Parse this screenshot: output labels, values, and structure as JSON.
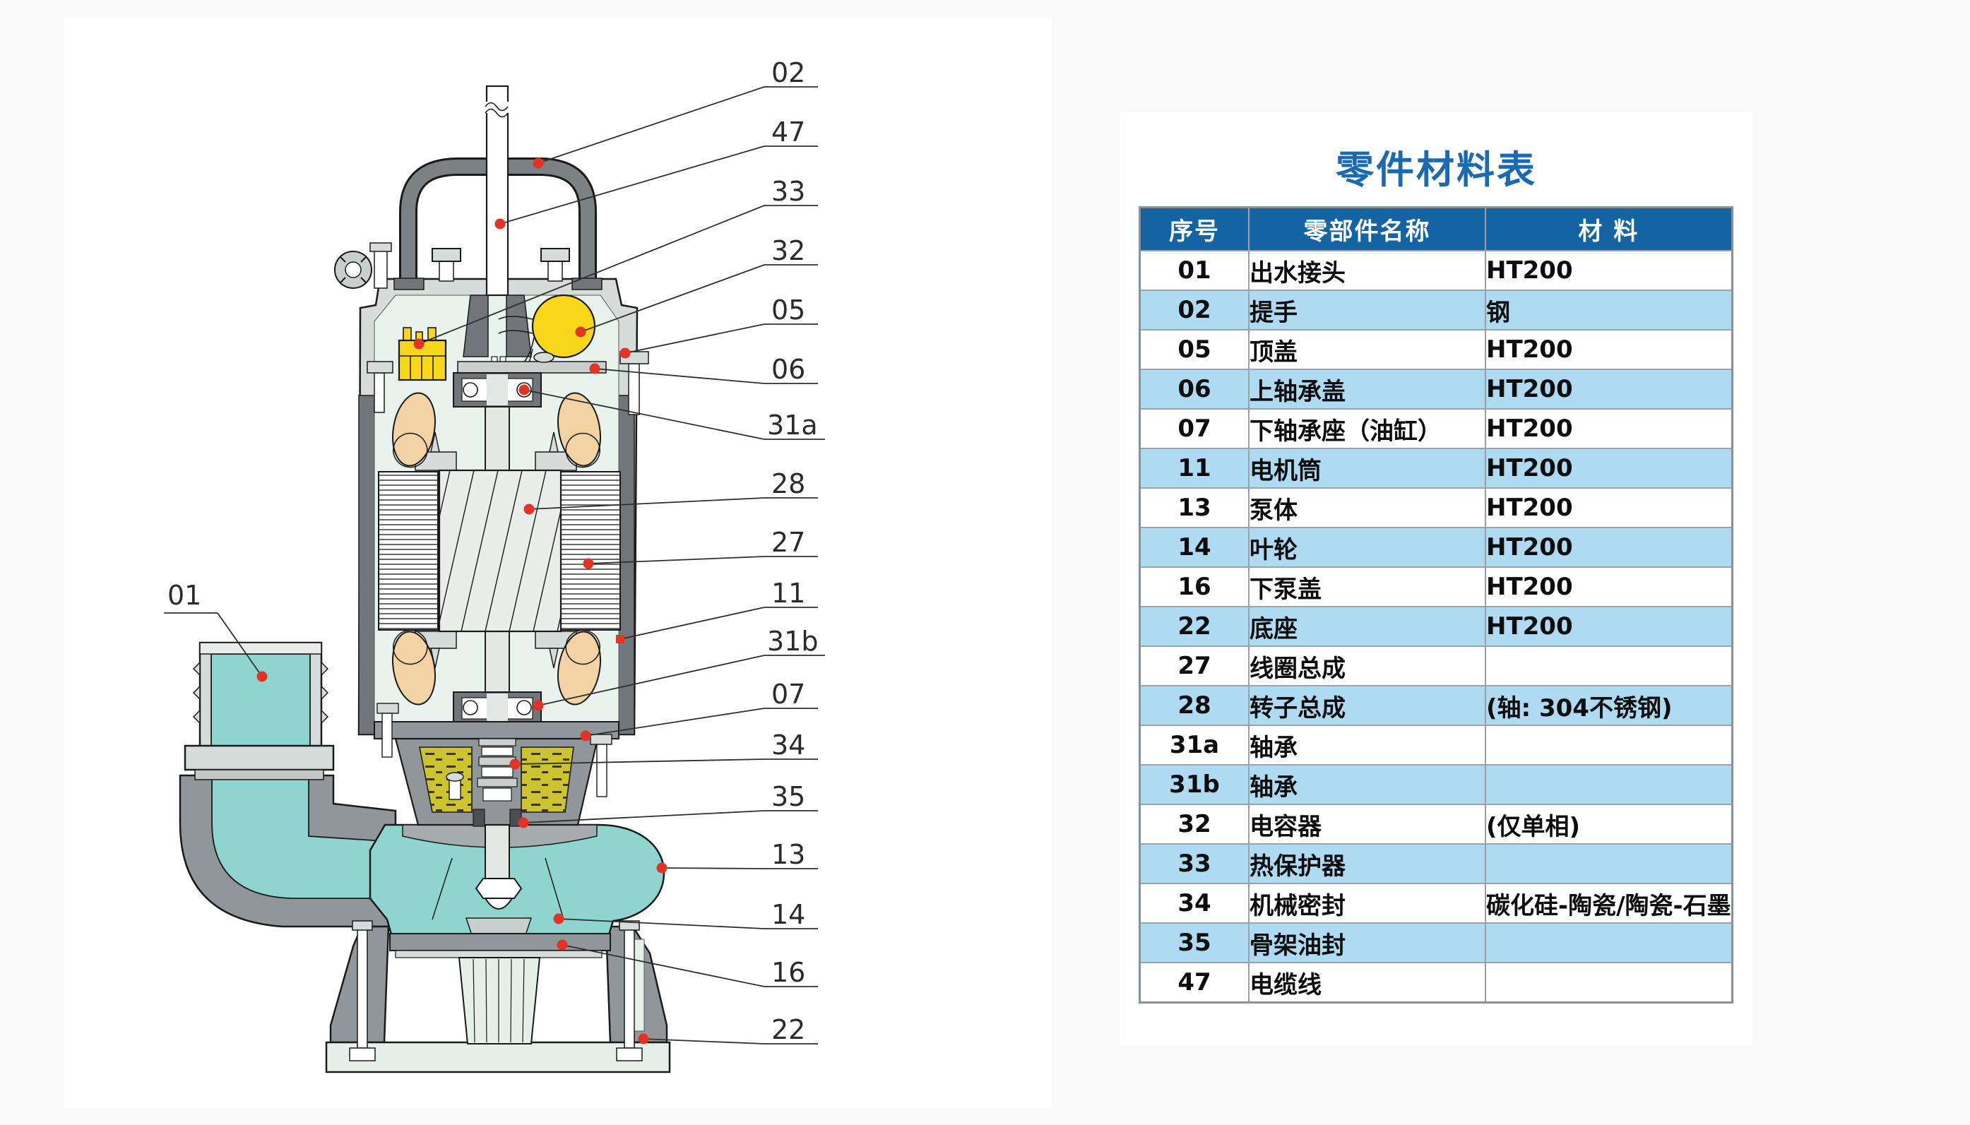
{
  "panel": {
    "title": "零件材料表"
  },
  "table": {
    "headers": [
      "序号",
      "零部件名称",
      "材  料"
    ],
    "rows": [
      {
        "no": "01",
        "name": "出水接头",
        "material": "HT200"
      },
      {
        "no": "02",
        "name": "提手",
        "material": "钢"
      },
      {
        "no": "05",
        "name": "顶盖",
        "material": "HT200"
      },
      {
        "no": "06",
        "name": "上轴承盖",
        "material": "HT200"
      },
      {
        "no": "07",
        "name": "下轴承座（油缸）",
        "material": "HT200"
      },
      {
        "no": "11",
        "name": "电机筒",
        "material": "HT200"
      },
      {
        "no": "13",
        "name": "泵体",
        "material": "HT200"
      },
      {
        "no": "14",
        "name": "叶轮",
        "material": "HT200"
      },
      {
        "no": "16",
        "name": "下泵盖",
        "material": "HT200"
      },
      {
        "no": "22",
        "name": "底座",
        "material": "HT200"
      },
      {
        "no": "27",
        "name": "线圈总成",
        "material": ""
      },
      {
        "no": "28",
        "name": "转子总成",
        "material": "(轴: 304不锈钢)"
      },
      {
        "no": "31a",
        "name": "轴承",
        "material": ""
      },
      {
        "no": "31b",
        "name": "轴承",
        "material": ""
      },
      {
        "no": "32",
        "name": "电容器",
        "material": "(仅单相)"
      },
      {
        "no": "33",
        "name": "热保护器",
        "material": ""
      },
      {
        "no": "34",
        "name": "机械密封",
        "material": "碳化硅-陶瓷/陶瓷-石墨"
      },
      {
        "no": "35",
        "name": "骨架油封",
        "material": ""
      },
      {
        "no": "47",
        "name": "电缆线",
        "material": ""
      }
    ]
  },
  "diagram": {
    "callouts": [
      "02",
      "47",
      "33",
      "32",
      "05",
      "06",
      "31a",
      "28",
      "27",
      "11",
      "31b",
      "07",
      "34",
      "35",
      "13",
      "14",
      "16",
      "22",
      "01"
    ],
    "parts": [
      "handle",
      "cable",
      "thermal-protector",
      "capacitor",
      "top-cover",
      "upper-bearing-cover",
      "upper-bearing",
      "rotor-assembly",
      "coil-assembly",
      "motor-shell",
      "lower-bearing",
      "lower-bearing-seat-oil-chamber",
      "mechanical-seal",
      "oil-seal",
      "pump-volute",
      "impeller",
      "lower-pump-cover",
      "base-stand",
      "outlet-connector"
    ]
  },
  "colors": {
    "header_bg": "#1464a3",
    "row_alt": "#aedaf2",
    "title_color": "#1a6ab2",
    "callout_dot": "#e43325",
    "pump_teal": "#8ed5d0",
    "interior_mint": "#e7f3ec",
    "component_yellow": "#f8d61a",
    "oil_olive": "#ccc32d",
    "coil_tan": "#f3d2a4",
    "casting_gray": "#90969a"
  }
}
